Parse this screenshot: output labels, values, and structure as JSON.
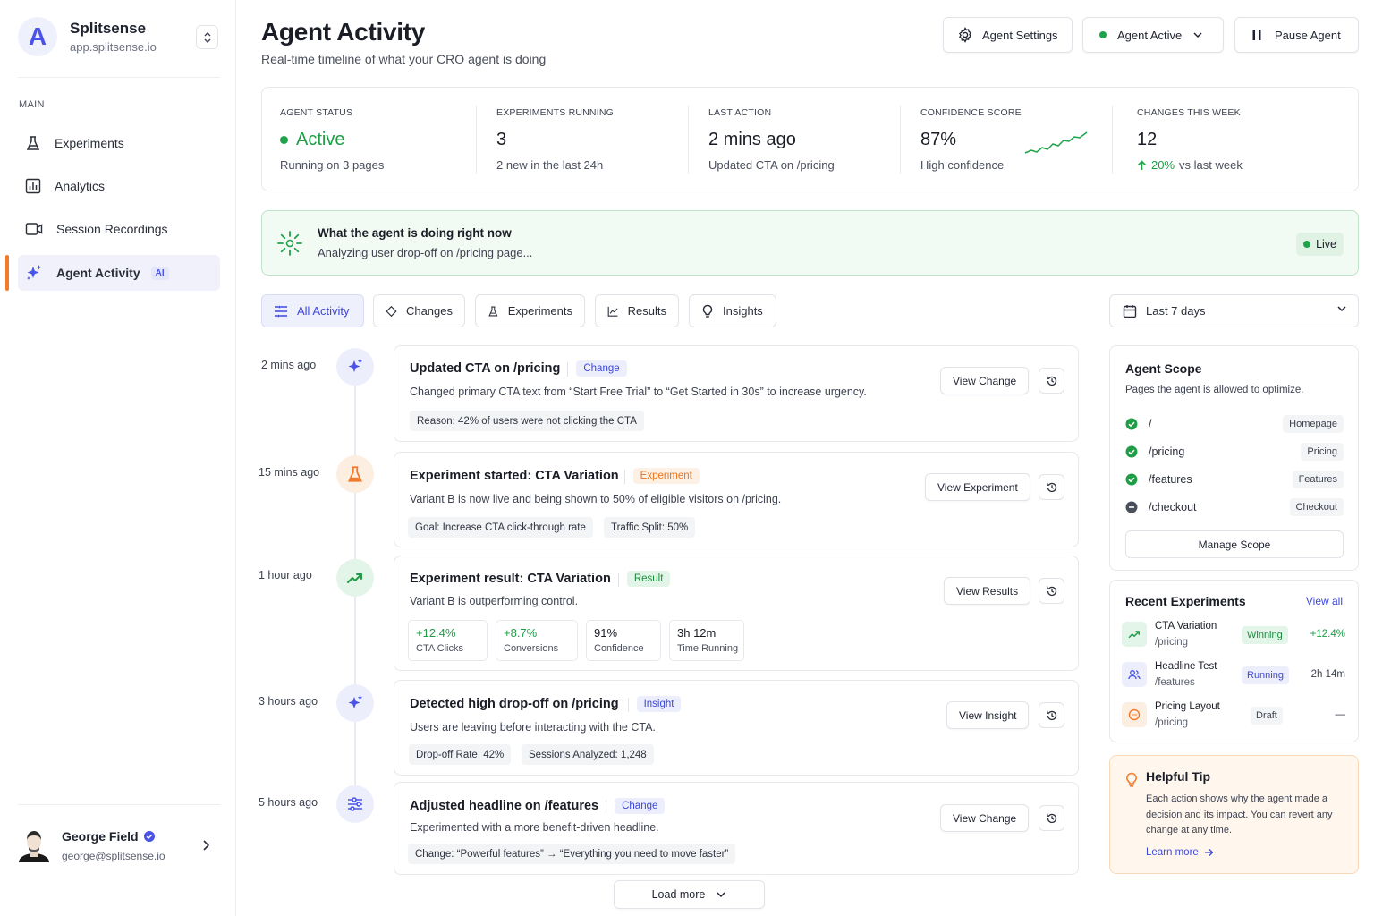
{
  "brand": {
    "name": "Splitsense",
    "url": "app.splitsense.io",
    "logo_letter": "A"
  },
  "nav": {
    "section": "MAIN",
    "items": [
      {
        "label": "Experiments",
        "icon": "flask-icon"
      },
      {
        "label": "Analytics",
        "icon": "bar-chart-icon"
      },
      {
        "label": "Session Recordings",
        "icon": "video-icon"
      },
      {
        "label": "Agent Activity",
        "icon": "sparkle-icon",
        "badge": "AI",
        "active": true
      }
    ]
  },
  "user": {
    "name": "George Field",
    "email": "george@splitsense.io"
  },
  "header": {
    "title": "Agent Activity",
    "subtitle": "Real-time timeline of what your CRO agent is doing",
    "settings": "Agent Settings",
    "status": "Agent Active",
    "pause": "Pause Agent"
  },
  "stats": [
    {
      "label": "AGENT STATUS",
      "value": "Active",
      "sub": "Running on 3 pages"
    },
    {
      "label": "EXPERIMENTS RUNNING",
      "value": "3",
      "sub": "2 new in the last 24h"
    },
    {
      "label": "LAST ACTION",
      "value": "2 mins ago",
      "sub": "Updated CTA on /pricing"
    },
    {
      "label": "CONFIDENCE SCORE",
      "value": "87%",
      "sub": "High confidence"
    },
    {
      "label": "CHANGES THIS WEEK",
      "value": "12",
      "sub_strong": "20%",
      "sub": "vs last week"
    }
  ],
  "now": {
    "title": "What the agent is doing right now",
    "text": "Analyzing user drop-off on /pricing page...",
    "live": "Live"
  },
  "filters": [
    "All Activity",
    "Changes",
    "Experiments",
    "Results",
    "Insights"
  ],
  "range": "Last 7 days",
  "timeline": [
    {
      "time": "2 mins ago",
      "title": "Updated CTA on /pricing",
      "tag": "Change",
      "desc": "Changed primary CTA text from “Start Free Trial” to “Get Started in 30s” to increase urgency.",
      "chips": [
        "Reason: 42% of users were not clicking the CTA"
      ],
      "button": "View Change"
    },
    {
      "time": "15 mins ago",
      "title": "Experiment started: CTA Variation",
      "tag": "Experiment",
      "desc": "Variant B is now live and being shown to 50% of eligible visitors on /pricing.",
      "chips": [
        "Goal: Increase CTA click-through rate",
        "Traffic Split: 50%"
      ],
      "button": "View Experiment"
    },
    {
      "time": "1 hour ago",
      "title": "Experiment result: CTA Variation",
      "tag": "Result",
      "desc": "Variant B is outperforming control.",
      "metrics": [
        {
          "v": "+12.4%",
          "l": "CTA Clicks"
        },
        {
          "v": "+8.7%",
          "l": "Conversions"
        },
        {
          "v": "91%",
          "l": "Confidence"
        },
        {
          "v": "3h 12m",
          "l": "Time Running"
        }
      ],
      "button": "View Results"
    },
    {
      "time": "3 hours ago",
      "title": "Detected high drop-off on /pricing",
      "tag": "Insight",
      "desc": "Users are leaving before interacting with the CTA.",
      "chips": [
        "Drop-off Rate: 42%",
        "Sessions Analyzed: 1,248"
      ],
      "button": "View Insight"
    },
    {
      "time": "5 hours ago",
      "title": "Adjusted headline on /features",
      "tag": "Change",
      "desc": "Experimented with a more benefit-driven headline.",
      "chips": [
        "Change:  “Powerful features” → “Everything you need to move faster”"
      ],
      "button": "View Change"
    }
  ],
  "load_more": "Load more",
  "scope": {
    "title": "Agent Scope",
    "subtitle": "Pages the agent is allowed to optimize.",
    "pages": [
      {
        "path": "/",
        "label": "Homepage",
        "enabled": true
      },
      {
        "path": "/pricing",
        "label": "Pricing",
        "enabled": true
      },
      {
        "path": "/features",
        "label": "Features",
        "enabled": true
      },
      {
        "path": "/checkout",
        "label": "Checkout",
        "enabled": false
      }
    ],
    "button": "Manage Scope"
  },
  "recent": {
    "title": "Recent Experiments",
    "view_all": "View all",
    "items": [
      {
        "name": "CTA Variation",
        "path": "/pricing",
        "status": "Winning",
        "value": "+12.4%"
      },
      {
        "name": "Headline Test",
        "path": "/features",
        "status": "Running",
        "value": "2h 14m"
      },
      {
        "name": "Pricing Layout",
        "path": "/pricing",
        "status": "Draft",
        "value": "—"
      }
    ]
  },
  "tip": {
    "title": "Helpful Tip",
    "text": "Each action shows why the agent made a decision and its impact. You can revert any change at any time.",
    "link": "Learn more"
  },
  "colors": {
    "accent": "#4954e6",
    "green": "#1ea24a",
    "orange": "#f37a2a"
  }
}
